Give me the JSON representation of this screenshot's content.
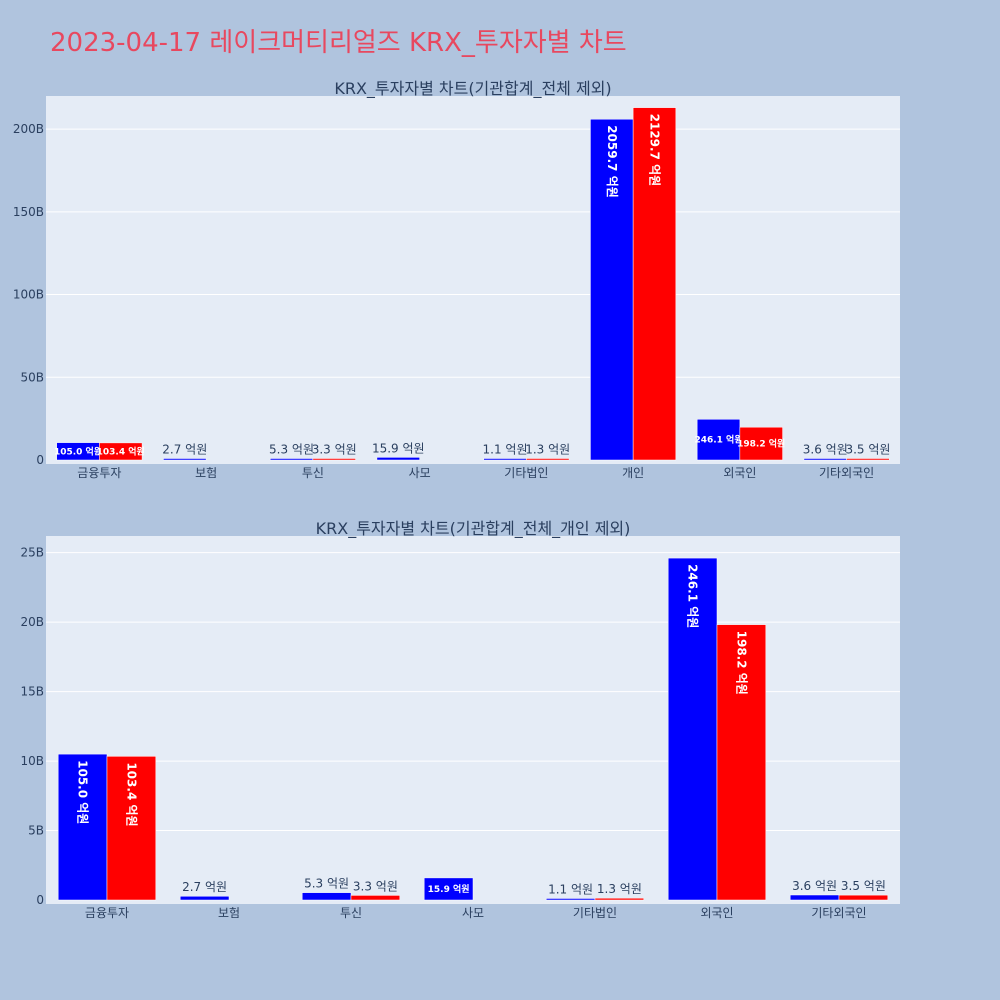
{
  "title": "2023-04-17 레이크머티리얼즈 KRX_투자자별 차트",
  "colors": {
    "buy": "#0000ff",
    "sell": "#ff0000",
    "title": "#e8485f",
    "background": "#b0c4de",
    "plot": "#e5ecf6"
  },
  "chart_data": [
    {
      "type": "bar",
      "title": "KRX_투자자별 차트(기관합계_전체 제외)",
      "categories": [
        "금융투자",
        "보험",
        "투신",
        "사모",
        "기타법인",
        "개인",
        "외국인",
        "기타외국인"
      ],
      "series": [
        {
          "values": [
            10.5,
            0.27,
            0.53,
            1.59,
            0.11,
            205.97,
            24.61,
            0.36
          ],
          "labels": [
            "105.0 억원",
            "2.7 억원",
            "5.3 억원",
            "15.9 억원",
            "1.1 억원",
            "2059.7 억원",
            "246.1 억원",
            "3.6 억원"
          ]
        },
        {
          "values": [
            10.34,
            0,
            0.33,
            0,
            0.13,
            212.97,
            19.82,
            0.35
          ],
          "labels": [
            "103.4 억원",
            "",
            "3.3 억원",
            "",
            "1.3 억원",
            "2129.7 억원",
            "198.2 억원",
            "3.5 억원"
          ]
        }
      ],
      "yunit": "B",
      "ylim": [
        0,
        220
      ],
      "yticks": [
        0,
        50,
        100,
        150,
        200
      ],
      "ytick_labels": [
        "0",
        "50B",
        "100B",
        "150B",
        "200B"
      ],
      "grid": true,
      "legend": "none"
    },
    {
      "type": "bar",
      "title": "KRX_투자자별 차트(기관합계_전체_개인 제외)",
      "categories": [
        "금융투자",
        "보험",
        "투신",
        "사모",
        "기타법인",
        "외국인",
        "기타외국인"
      ],
      "series": [
        {
          "values": [
            10.5,
            0.27,
            0.53,
            1.59,
            0.11,
            24.61,
            0.36
          ],
          "labels": [
            "105.0 억원",
            "2.7 억원",
            "5.3 억원",
            "15.9 억원",
            "1.1 억원",
            "246.1 억원",
            "3.6 억원"
          ]
        },
        {
          "values": [
            10.34,
            0,
            0.33,
            0,
            0.13,
            19.82,
            0.35
          ],
          "labels": [
            "103.4 억원",
            "",
            "3.3 억원",
            "",
            "1.3 억원",
            "198.2 억원",
            "3.5 억원"
          ]
        }
      ],
      "yunit": "B",
      "ylim": [
        0,
        26.2
      ],
      "yticks": [
        0,
        5,
        10,
        15,
        20,
        25
      ],
      "ytick_labels": [
        "0",
        "5B",
        "10B",
        "15B",
        "20B",
        "25B"
      ],
      "grid": true,
      "legend": "none"
    }
  ]
}
